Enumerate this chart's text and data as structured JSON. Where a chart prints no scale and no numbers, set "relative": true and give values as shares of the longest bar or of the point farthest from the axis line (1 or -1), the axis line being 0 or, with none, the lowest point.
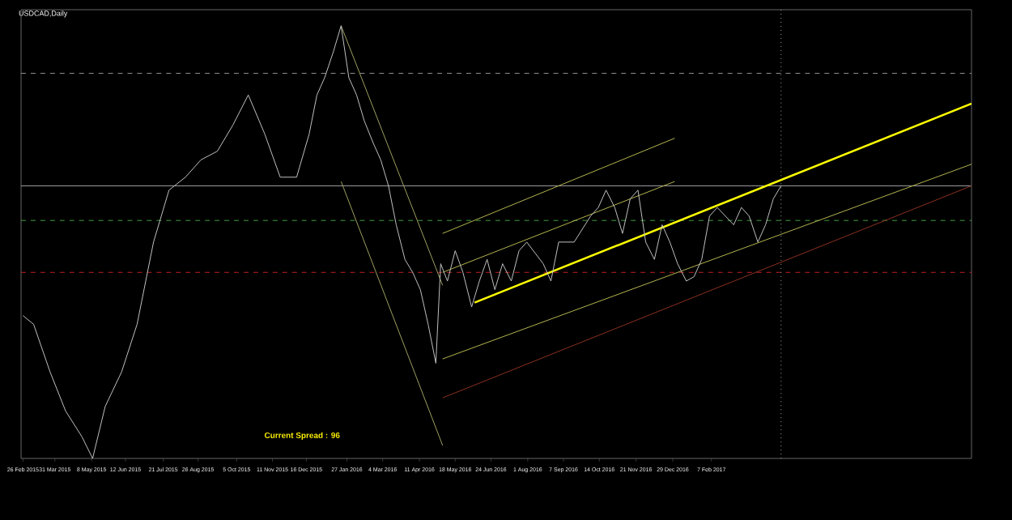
{
  "chart_data": {
    "type": "line",
    "title": "USDCAD,Daily",
    "relative": true,
    "grid": false,
    "x": [
      "2015-02-26",
      "2015-03-09",
      "2015-03-26",
      "2015-04-11",
      "2015-04-28",
      "2015-05-09",
      "2015-05-22",
      "2015-06-08",
      "2015-06-24",
      "2015-07-11",
      "2015-07-27",
      "2015-08-13",
      "2015-08-29",
      "2015-09-15",
      "2015-10-01",
      "2015-10-17",
      "2015-11-03",
      "2015-11-19",
      "2015-12-06",
      "2015-12-19",
      "2015-12-27",
      "2016-01-04",
      "2016-01-13",
      "2016-01-21",
      "2016-01-29",
      "2016-02-06",
      "2016-02-14",
      "2016-02-23",
      "2016-03-02",
      "2016-03-10",
      "2016-03-18",
      "2016-03-27",
      "2016-04-04",
      "2016-04-12",
      "2016-04-20",
      "2016-04-28",
      "2016-05-03",
      "2016-05-10",
      "2016-05-18",
      "2016-05-26",
      "2016-06-04",
      "2016-06-12",
      "2016-06-20",
      "2016-06-28",
      "2016-07-06",
      "2016-07-15",
      "2016-07-23",
      "2016-07-31",
      "2016-08-17",
      "2016-08-25",
      "2016-09-02",
      "2016-09-18",
      "2016-10-05",
      "2016-10-13",
      "2016-10-21",
      "2016-10-30",
      "2016-11-07",
      "2016-11-15",
      "2016-11-23",
      "2016-12-01",
      "2016-12-10",
      "2016-12-18",
      "2016-12-26",
      "2017-01-03",
      "2017-01-12",
      "2017-01-20",
      "2017-01-28",
      "2017-02-05",
      "2017-02-13",
      "2017-03-02",
      "2017-03-10",
      "2017-03-18",
      "2017-03-27",
      "2017-04-04",
      "2017-04-12",
      "2017-04-20"
    ],
    "xlim": [
      "2015-02-24",
      "2017-11-03"
    ],
    "xticks": [
      {
        "value": "2015-02-26",
        "label": "26 Feb 2015"
      },
      {
        "value": "2015-03-31",
        "label": "31 Mar 2015"
      },
      {
        "value": "2015-05-08",
        "label": "8 May 2015"
      },
      {
        "value": "2015-06-12",
        "label": "12 Jun 2015"
      },
      {
        "value": "2015-07-21",
        "label": "21 Jul 2015"
      },
      {
        "value": "2015-08-26",
        "label": "26 Aug 2015"
      },
      {
        "value": "2015-10-05",
        "label": "5 Oct 2015"
      },
      {
        "value": "2015-11-11",
        "label": "11 Nov 2015"
      },
      {
        "value": "2015-12-16",
        "label": "16 Dec 2015"
      },
      {
        "value": "2016-01-27",
        "label": "27 Jan 2016"
      },
      {
        "value": "2016-03-04",
        "label": "4 Mar 2016"
      },
      {
        "value": "2016-04-11",
        "label": "11 Apr 2016"
      },
      {
        "value": "2016-05-18",
        "label": "18 May 2016"
      },
      {
        "value": "2016-06-24",
        "label": "24 Jun 2016"
      },
      {
        "value": "2016-08-01",
        "label": "1 Aug 2016"
      },
      {
        "value": "2016-09-07",
        "label": "7 Sep 2016"
      },
      {
        "value": "2016-10-14",
        "label": "14 Oct 2016"
      },
      {
        "value": "2016-11-21",
        "label": "21 Nov 2016"
      },
      {
        "value": "2016-12-29",
        "label": "29 Dec 2016"
      },
      {
        "value": "2017-02-07",
        "label": "7 Feb 2017"
      }
    ],
    "series": [
      {
        "color": "#c0c0c0",
        "values": [
          0.33,
          0.31,
          0.2,
          0.11,
          0.05,
          0,
          0.12,
          0.2,
          0.31,
          0.5,
          0.62,
          0.65,
          0.69,
          0.71,
          0.77,
          0.84,
          0.75,
          0.65,
          0.65,
          0.75,
          0.84,
          0.88,
          0.94,
          1,
          0.88,
          0.84,
          0.78,
          0.73,
          0.69,
          0.63,
          0.54,
          0.46,
          0.43,
          0.39,
          0.31,
          0.22,
          0.45,
          0.41,
          0.48,
          0.43,
          0.35,
          0.41,
          0.46,
          0.39,
          0.45,
          0.41,
          0.48,
          0.5,
          0.45,
          0.41,
          0.5,
          0.5,
          0.56,
          0.58,
          0.62,
          0.58,
          0.52,
          0.6,
          0.62,
          0.5,
          0.46,
          0.54,
          0.5,
          0.45,
          0.41,
          0.42,
          0.46,
          0.56,
          0.58,
          0.54,
          0.58,
          0.56,
          0.5,
          0.54,
          0.6,
          0.63
        ]
      },
      {
        "type": "line",
        "color": "#ffff00",
        "x": [
          "2016-06-07",
          "2017-11-03"
        ],
        "values": [
          0.36,
          0.82
        ]
      },
      {
        "type": "line",
        "color": "#b4b450",
        "x": [
          "2016-05-05",
          "2016-12-31"
        ],
        "values": [
          0.52,
          0.74
        ]
      },
      {
        "type": "line",
        "color": "#b4b450",
        "x": [
          "2016-05-05",
          "2016-12-31"
        ],
        "values": [
          0.43,
          0.64
        ]
      },
      {
        "type": "line",
        "color": "#b4b450",
        "x": [
          "2016-05-05",
          "2017-11-03"
        ],
        "values": [
          0.23,
          0.68
        ]
      },
      {
        "type": "line",
        "color": "#8b3020",
        "x": [
          "2016-05-05",
          "2017-11-03"
        ],
        "values": [
          0.14,
          0.63
        ]
      },
      {
        "type": "line",
        "color": "#a0a060",
        "x": [
          "2016-01-21",
          "2016-05-05"
        ],
        "values": [
          1,
          0.4
        ]
      },
      {
        "type": "line",
        "color": "#a0a060",
        "x": [
          "2016-01-21",
          "2016-05-05"
        ],
        "values": [
          0.64,
          0.03
        ]
      }
    ],
    "ref_lines": [
      {
        "axis": "y",
        "value": 0.89,
        "color": "#909090",
        "line_style": "dashed"
      },
      {
        "axis": "y",
        "value": 0.63,
        "color": "#a0a0a0",
        "line_style": "solid"
      },
      {
        "axis": "y",
        "value": 0.55,
        "color": "#40a040",
        "line_style": "dashed"
      },
      {
        "axis": "y",
        "value": 0.43,
        "color": "#c02020",
        "line_style": "dashed"
      },
      {
        "axis": "x",
        "value": "2017-04-20",
        "color": "#a0a0a0",
        "line_style": "dotted"
      }
    ],
    "annotations": [
      "Current Spread :  96"
    ]
  }
}
